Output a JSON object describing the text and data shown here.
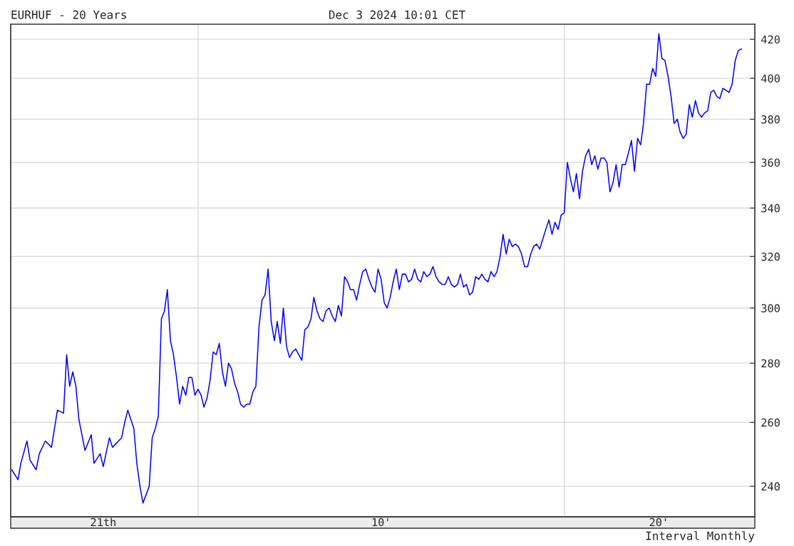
{
  "chart_data": {
    "type": "line",
    "title": "EURHUF - 20 Years",
    "subtitle": "Dec 3 2024 10:01 CET",
    "annotations": [
      "Interval Monthly"
    ],
    "log": "y",
    "grid": "y",
    "marker": "none",
    "line_style": "solid",
    "xlim": [
      "2004-11-20",
      "2025-03-15"
    ],
    "ylim": [
      231,
      428
    ],
    "xticks": [
      {
        "value": "2007-06",
        "label": "21th"
      },
      {
        "value": "2010-01",
        "label": null
      },
      {
        "value": "2015-01",
        "label": "10'"
      },
      {
        "value": "2020-01",
        "label": null
      },
      {
        "value": "2022-08",
        "label": "20'"
      }
    ],
    "yticks": [
      240,
      260,
      280,
      300,
      320,
      340,
      360,
      380,
      400,
      420
    ],
    "ref_lines": [
      {
        "axis": "x",
        "value": "2010-01",
        "color": "#d9d9d9"
      },
      {
        "axis": "x",
        "value": "2020-01",
        "color": "#d9d9d9"
      }
    ],
    "series": [
      {
        "color": "#0000ff",
        "x": [
          "2004-12",
          "2005-02",
          "2005-03",
          "2005-05",
          "2005-06",
          "2005-08",
          "2005-09",
          "2005-11",
          "2006-01",
          "2006-03",
          "2006-05",
          "2006-06",
          "2006-07",
          "2006-08",
          "2006-09",
          "2006-10",
          "2006-12",
          "2007-02",
          "2007-03",
          "2007-05",
          "2007-06",
          "2007-08",
          "2007-09",
          "2007-12",
          "2008-01",
          "2008-02",
          "2008-04",
          "2008-05",
          "2008-06",
          "2008-07",
          "2008-09",
          "2008-10",
          "2008-11",
          "2008-12",
          "2009-01",
          "2009-02",
          "2009-03",
          "2009-04",
          "2009-05",
          "2009-06",
          "2009-07",
          "2009-08",
          "2009-09",
          "2009-10",
          "2009-11",
          "2009-12",
          "2010-01",
          "2010-02",
          "2010-03",
          "2010-04",
          "2010-05",
          "2010-06",
          "2010-07",
          "2010-08",
          "2010-09",
          "2010-10",
          "2010-11",
          "2010-12",
          "2011-01",
          "2011-02",
          "2011-03",
          "2011-04",
          "2011-05",
          "2011-06",
          "2011-07",
          "2011-08",
          "2011-09",
          "2011-10",
          "2011-11",
          "2011-12",
          "2012-01",
          "2012-02",
          "2012-03",
          "2012-04",
          "2012-05",
          "2012-06",
          "2012-07",
          "2012-08",
          "2012-09",
          "2012-10",
          "2012-11",
          "2012-12",
          "2013-01",
          "2013-02",
          "2013-03",
          "2013-04",
          "2013-05",
          "2013-06",
          "2013-07",
          "2013-08",
          "2013-09",
          "2013-10",
          "2013-11",
          "2013-12",
          "2014-01",
          "2014-02",
          "2014-03",
          "2014-04",
          "2014-05",
          "2014-06",
          "2014-07",
          "2014-08",
          "2014-09",
          "2014-10",
          "2014-11",
          "2014-12",
          "2015-01",
          "2015-02",
          "2015-03",
          "2015-04",
          "2015-05",
          "2015-06",
          "2015-07",
          "2015-08",
          "2015-09",
          "2015-10",
          "2015-11",
          "2015-12",
          "2016-01",
          "2016-02",
          "2016-03",
          "2016-04",
          "2016-05",
          "2016-06",
          "2016-07",
          "2016-08",
          "2016-09",
          "2016-10",
          "2016-11",
          "2016-12",
          "2017-01",
          "2017-02",
          "2017-03",
          "2017-04",
          "2017-05",
          "2017-06",
          "2017-07",
          "2017-08",
          "2017-09",
          "2017-10",
          "2017-11",
          "2017-12",
          "2018-01",
          "2018-02",
          "2018-03",
          "2018-04",
          "2018-05",
          "2018-06",
          "2018-07",
          "2018-08",
          "2018-09",
          "2018-10",
          "2018-11",
          "2018-12",
          "2019-01",
          "2019-02",
          "2019-03",
          "2019-04",
          "2019-05",
          "2019-06",
          "2019-07",
          "2019-08",
          "2019-09",
          "2019-10",
          "2019-11",
          "2019-12",
          "2020-01",
          "2020-02",
          "2020-03",
          "2020-04",
          "2020-05",
          "2020-06",
          "2020-07",
          "2020-08",
          "2020-09",
          "2020-10",
          "2020-11",
          "2020-12",
          "2021-01",
          "2021-02",
          "2021-03",
          "2021-04",
          "2021-05",
          "2021-06",
          "2021-07",
          "2021-08",
          "2021-09",
          "2021-10",
          "2021-11",
          "2021-12",
          "2022-01",
          "2022-02",
          "2022-03",
          "2022-04",
          "2022-05",
          "2022-06",
          "2022-07",
          "2022-08",
          "2022-09",
          "2022-10",
          "2022-11",
          "2022-12",
          "2023-01",
          "2023-02",
          "2023-03",
          "2023-04",
          "2023-05",
          "2023-06",
          "2023-07",
          "2023-08",
          "2023-09",
          "2023-10",
          "2023-11",
          "2023-12",
          "2024-01",
          "2024-02",
          "2024-03",
          "2024-04",
          "2024-05",
          "2024-06",
          "2024-07",
          "2024-08",
          "2024-09",
          "2024-10",
          "2024-11"
        ],
        "values": [
          245,
          242,
          247,
          254,
          248,
          245,
          250,
          254,
          252,
          264,
          263,
          283,
          272,
          277,
          272,
          261,
          251,
          256,
          247,
          250,
          246,
          255,
          252,
          255,
          260,
          264,
          258,
          247,
          240,
          235,
          240,
          255,
          258,
          262,
          296,
          299,
          307,
          288,
          283,
          275,
          266,
          272,
          269,
          275,
          275,
          269,
          271,
          269,
          265,
          268,
          274,
          284,
          283,
          287,
          277,
          272,
          280,
          278,
          273,
          270,
          266,
          265,
          266,
          266,
          270,
          272,
          293,
          303,
          305,
          315,
          295,
          288,
          295,
          287,
          300,
          286,
          282,
          284,
          285,
          283,
          281,
          292,
          293,
          296,
          304,
          299,
          296,
          295,
          299,
          300,
          297,
          295,
          301,
          297,
          312,
          310,
          307,
          307,
          303,
          309,
          314,
          315,
          311,
          308,
          306,
          315,
          311,
          302,
          300,
          304,
          310,
          315,
          307,
          313,
          313,
          310,
          311,
          315,
          311,
          310,
          314,
          312,
          313,
          316,
          312,
          310,
          309,
          309,
          312,
          309,
          308,
          309,
          313,
          308,
          309,
          305,
          306,
          312,
          311,
          313,
          311,
          310,
          314,
          312,
          314,
          320,
          329,
          321,
          327,
          324,
          325,
          324,
          321,
          316,
          316,
          321,
          324,
          325,
          323,
          327,
          331,
          335,
          329,
          334,
          331,
          337,
          338,
          360,
          353,
          347,
          355,
          344,
          356,
          363,
          366,
          359,
          363,
          357,
          362,
          362,
          360,
          347,
          351,
          359,
          349,
          359,
          359,
          364,
          370,
          356,
          371,
          368,
          378,
          397,
          397,
          405,
          401,
          423,
          410,
          409,
          401,
          391,
          378,
          380,
          374,
          371,
          373,
          387,
          381,
          389,
          383,
          381,
          383,
          384,
          393,
          394,
          391,
          390,
          395,
          394,
          393,
          397,
          409,
          414,
          415
        ]
      }
    ]
  }
}
